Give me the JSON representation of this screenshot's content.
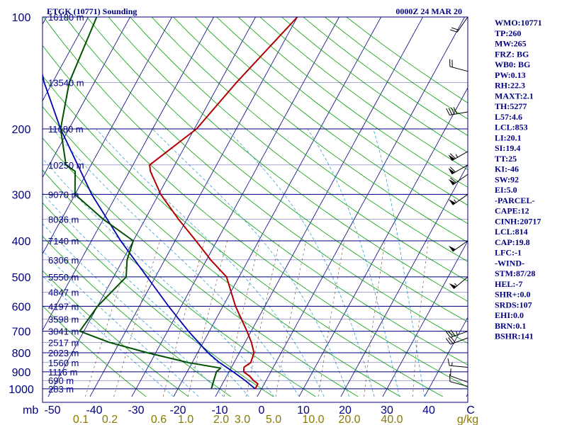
{
  "header": {
    "title": "ETGK (10771) Sounding",
    "datetime": "0000Z 24 MAR 20"
  },
  "colors": {
    "frame": "#000080",
    "isotherm": "#000080",
    "dry_adiabat": "#00a000",
    "moist_adiabat": "#33a3cc",
    "mixing_ratio": "#8b7355",
    "temperature": "#b00000",
    "dewpoint": "#005000",
    "parcel": "#0000b0",
    "wind_barb": "#000000",
    "wlabel": "#8a7a00"
  },
  "chart_data": {
    "type": "skew-t",
    "pressure_axis_label": "mb",
    "pressure_levels": [
      100,
      200,
      300,
      400,
      500,
      600,
      700,
      800,
      900,
      1000
    ],
    "height_labels": [
      {
        "p": 100,
        "text": "16180 m"
      },
      {
        "p": 150,
        "text": "13540 m"
      },
      {
        "p": 200,
        "text": "11680 m"
      },
      {
        "p": 250,
        "text": "10250 m"
      },
      {
        "p": 300,
        "text": "9070 m"
      },
      {
        "p": 350,
        "text": "8036 m"
      },
      {
        "p": 400,
        "text": "7140 m"
      },
      {
        "p": 450,
        "text": "6306 m"
      },
      {
        "p": 500,
        "text": "5550 m"
      },
      {
        "p": 550,
        "text": "4847 m"
      },
      {
        "p": 600,
        "text": "4197 m"
      },
      {
        "p": 650,
        "text": "3598 m"
      },
      {
        "p": 700,
        "text": "3041 m"
      },
      {
        "p": 750,
        "text": "2517 m"
      },
      {
        "p": 800,
        "text": "2023 m"
      },
      {
        "p": 850,
        "text": "1560 m"
      },
      {
        "p": 900,
        "text": "1116 m"
      },
      {
        "p": 950,
        "text": "690 m"
      },
      {
        "p": 1000,
        "text": "283 m"
      }
    ],
    "temperature_ticks": [
      {
        "v": -50,
        "text": "-50"
      },
      {
        "v": -40,
        "text": "-40"
      },
      {
        "v": -30,
        "text": "-30"
      },
      {
        "v": -20,
        "text": "-20"
      },
      {
        "v": -10,
        "text": "-10"
      },
      {
        "v": 0,
        "text": "0"
      },
      {
        "v": 10,
        "text": "10"
      },
      {
        "v": 20,
        "text": "20"
      },
      {
        "v": 30,
        "text": "30"
      },
      {
        "v": 40,
        "text": "40"
      },
      {
        "v": 50,
        "text": "C"
      }
    ],
    "mixing_ratio_ticks": [
      {
        "v": 0.1,
        "text": "0.1"
      },
      {
        "v": 0.2,
        "text": "0.2"
      },
      {
        "v": 0.6,
        "text": "0.6"
      },
      {
        "v": 1.0,
        "text": "1.0"
      },
      {
        "v": 2.0,
        "text": "2.0"
      },
      {
        "v": 3.0,
        "text": "3.0"
      },
      {
        "v": 5.0,
        "text": "5.0"
      },
      {
        "v": 10.0,
        "text": "10.0"
      },
      {
        "v": 20.0,
        "text": "20.0"
      },
      {
        "v": 40.0,
        "text": "40.0"
      }
    ],
    "mixing_ratio_unit": "g/kg",
    "temperature_profile": [
      {
        "p": 1000,
        "t": -1.5
      },
      {
        "p": 970,
        "t": -1.5
      },
      {
        "p": 950,
        "t": -3.0
      },
      {
        "p": 925,
        "t": -4.5
      },
      {
        "p": 900,
        "t": -6.5
      },
      {
        "p": 875,
        "t": -7.0
      },
      {
        "p": 850,
        "t": -6.0
      },
      {
        "p": 800,
        "t": -6.5
      },
      {
        "p": 750,
        "t": -8.5
      },
      {
        "p": 700,
        "t": -11.0
      },
      {
        "p": 600,
        "t": -17.0
      },
      {
        "p": 500,
        "t": -23.0
      },
      {
        "p": 450,
        "t": -29.0
      },
      {
        "p": 400,
        "t": -35.0
      },
      {
        "p": 350,
        "t": -42.0
      },
      {
        "p": 300,
        "t": -49.5
      },
      {
        "p": 260,
        "t": -55.0
      },
      {
        "p": 250,
        "t": -56.0
      },
      {
        "p": 200,
        "t": -49.5
      },
      {
        "p": 150,
        "t": -46.0
      },
      {
        "p": 100,
        "t": -40.0
      }
    ],
    "dewpoint_profile": [
      {
        "p": 1000,
        "t": -12.0
      },
      {
        "p": 950,
        "t": -12.5
      },
      {
        "p": 900,
        "t": -13.0
      },
      {
        "p": 880,
        "t": -12.5
      },
      {
        "p": 850,
        "t": -21.0
      },
      {
        "p": 800,
        "t": -32.0
      },
      {
        "p": 750,
        "t": -42.5
      },
      {
        "p": 700,
        "t": -51.0
      },
      {
        "p": 600,
        "t": -50.0
      },
      {
        "p": 500,
        "t": -47.0
      },
      {
        "p": 450,
        "t": -49.0
      },
      {
        "p": 400,
        "t": -50.0
      },
      {
        "p": 350,
        "t": -60.0
      },
      {
        "p": 300,
        "t": -70.0
      },
      {
        "p": 260,
        "t": -73.0
      },
      {
        "p": 250,
        "t": -76.0
      },
      {
        "p": 200,
        "t": -82.0
      },
      {
        "p": 150,
        "t": -86.0
      },
      {
        "p": 100,
        "t": -88.0
      }
    ],
    "parcel_profile": [
      {
        "p": 1000,
        "t": -1.5
      },
      {
        "p": 950,
        "t": -5.0
      },
      {
        "p": 900,
        "t": -9.0
      },
      {
        "p": 850,
        "t": -13.5
      },
      {
        "p": 800,
        "t": -17.5
      },
      {
        "p": 700,
        "t": -25.0
      },
      {
        "p": 600,
        "t": -33.0
      },
      {
        "p": 500,
        "t": -42.0
      },
      {
        "p": 400,
        "t": -53.0
      },
      {
        "p": 300,
        "t": -66.0
      },
      {
        "p": 200,
        "t": -82.0
      },
      {
        "p": 150,
        "t": -92.0
      },
      {
        "p": 100,
        "t": -104.0
      }
    ],
    "wind_barbs": [
      {
        "p": 985,
        "dir": 285,
        "spd": 10
      },
      {
        "p": 960,
        "dir": 290,
        "spd": 10
      },
      {
        "p": 875,
        "dir": 275,
        "spd": 15
      },
      {
        "p": 730,
        "dir": 250,
        "spd": 30
      },
      {
        "p": 700,
        "dir": 250,
        "spd": 35
      },
      {
        "p": 500,
        "dir": 230,
        "spd": 55
      },
      {
        "p": 400,
        "dir": 235,
        "spd": 50
      },
      {
        "p": 300,
        "dir": 235,
        "spd": 55
      },
      {
        "p": 265,
        "dir": 235,
        "spd": 60
      },
      {
        "p": 250,
        "dir": 240,
        "spd": 60
      },
      {
        "p": 230,
        "dir": 240,
        "spd": 65
      },
      {
        "p": 180,
        "dir": 260,
        "spd": 40
      },
      {
        "p": 140,
        "dir": 285,
        "spd": 20
      },
      {
        "p": 100,
        "dir": 215,
        "spd": 20
      }
    ],
    "indices": [
      "WMO:10771",
      "TP:260",
      "MW:265",
      "FRZ: BG",
      "WB0: BG",
      "PW:0.13",
      "RH:22.3",
      "MAXT:2.1",
      "TH:5277",
      "L57:4.6",
      "LCL:853",
      "LI:20.1",
      "SI:19.4",
      "TT:25",
      "KI:-46",
      "SW:92",
      "EI:5.0",
      "-PARCEL-",
      "CAPE:12",
      "CINH:20717",
      "LCL:814",
      "CAP:19.8",
      "LFC:-1",
      "-WIND-",
      "STM:87/28",
      "HEL:-7",
      "SHR+:0.0",
      "SRDS:107",
      "EHI:0.0",
      "BRN:0.1",
      "BSHR:141"
    ]
  }
}
